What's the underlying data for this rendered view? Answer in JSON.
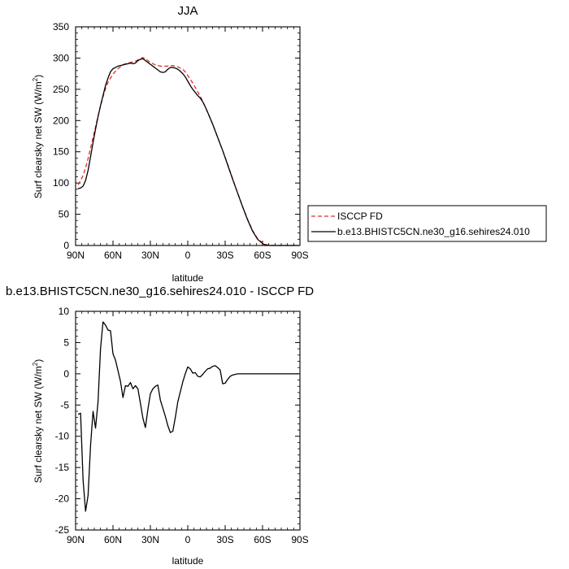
{
  "chart_data": [
    {
      "type": "line",
      "title": "JJA",
      "xlabel": "latitude",
      "ylabel": "Surf clearsky net SW (W/m",
      "ylabel_sup": "2",
      "ylabel_end": ")",
      "xlim": [
        90,
        -90
      ],
      "ylim": [
        0,
        350
      ],
      "xticks": [
        90,
        60,
        30,
        0,
        -30,
        -60,
        -90
      ],
      "xtick_labels": [
        "90N",
        "60N",
        "30N",
        "0",
        "30S",
        "60S",
        "90S"
      ],
      "yticks": [
        0,
        50,
        100,
        150,
        200,
        250,
        300,
        350
      ],
      "ytick_labels": [
        "0",
        "50",
        "100",
        "150",
        "200",
        "250",
        "300",
        "350"
      ],
      "legend": "right",
      "series": [
        {
          "name": "ISCCP FD",
          "color": "#e0302a",
          "dash": true,
          "x": [
            88,
            86,
            84,
            82,
            80,
            78,
            76,
            74,
            72,
            70,
            68,
            66,
            64,
            62,
            60,
            58,
            56,
            54,
            52,
            50,
            48,
            46,
            44,
            42,
            40,
            38,
            36,
            34,
            32,
            30,
            28,
            26,
            24,
            22,
            20,
            18,
            16,
            14,
            12,
            10,
            8,
            6,
            4,
            2,
            0,
            -2,
            -4,
            -6,
            -8,
            -10,
            -12,
            -14,
            -16,
            -20,
            -24,
            -28,
            -32,
            -36,
            -40,
            -44,
            -48,
            -52,
            -56,
            -60,
            -62,
            -64,
            -66,
            -70,
            -75,
            -80,
            -85,
            -89
          ],
          "y": [
            97,
            104,
            112,
            124,
            139,
            156,
            173,
            190,
            207,
            223,
            238,
            251,
            261,
            268,
            274,
            279,
            283,
            286,
            289,
            291,
            292,
            293,
            294,
            295,
            297,
            299,
            301,
            299,
            296,
            293,
            291,
            289,
            288,
            287,
            287,
            287,
            287,
            288,
            288,
            287,
            286,
            284,
            282,
            278,
            272,
            266,
            260,
            253,
            246,
            239,
            231,
            222,
            213,
            194,
            173,
            152,
            130,
            107,
            84,
            62,
            42,
            24,
            11,
            4,
            2,
            1,
            0.5,
            0,
            0,
            0,
            0,
            0
          ]
        },
        {
          "name": "b.e13.BHISTC5CN.ne30_g16.sehires24.010",
          "color": "#000000",
          "dash": false,
          "x": [
            88,
            86,
            84,
            82,
            80,
            78,
            76,
            74,
            72,
            70,
            68,
            66,
            64,
            62,
            60,
            58,
            56,
            54,
            52,
            50,
            48,
            46,
            44,
            42,
            40,
            38,
            36,
            34,
            32,
            30,
            28,
            26,
            24,
            22,
            20,
            18,
            16,
            14,
            12,
            10,
            8,
            6,
            4,
            2,
            0,
            -2,
            -4,
            -6,
            -8,
            -10,
            -12,
            -14,
            -16,
            -20,
            -24,
            -28,
            -32,
            -36,
            -40,
            -44,
            -48,
            -52,
            -56,
            -60,
            -62,
            -64,
            -66,
            -70,
            -75,
            -80,
            -85,
            -89
          ],
          "y": [
            91,
            92,
            95,
            104,
            120,
            142,
            165,
            186,
            206,
            224,
            240,
            256,
            268,
            278,
            283,
            285,
            287,
            288,
            289,
            290,
            291,
            292,
            291,
            292,
            296,
            298,
            299,
            296,
            293,
            290,
            287,
            284,
            281,
            278,
            277,
            278,
            282,
            285,
            285,
            284,
            282,
            279,
            275,
            270,
            263,
            256,
            250,
            245,
            240,
            236,
            230,
            222,
            213,
            194,
            173,
            152,
            129,
            106,
            84,
            62,
            41,
            23,
            10,
            3,
            1,
            0.5,
            0,
            0,
            0,
            0,
            0,
            0
          ]
        }
      ]
    },
    {
      "type": "line",
      "title": "b.e13.BHISTC5CN.ne30_g16.sehires24.010 - ISCCP FD",
      "xlabel": "latitude",
      "ylabel": "Surf clearsky net SW (W/m",
      "ylabel_sup": "2",
      "ylabel_end": ")",
      "xlim": [
        90,
        -90
      ],
      "ylim": [
        -25,
        10
      ],
      "xticks": [
        90,
        60,
        30,
        0,
        -30,
        -60,
        -90
      ],
      "xtick_labels": [
        "90N",
        "60N",
        "30N",
        "0",
        "30S",
        "60S",
        "90S"
      ],
      "yticks": [
        -25,
        -20,
        -15,
        -10,
        -5,
        0,
        5,
        10
      ],
      "ytick_labels": [
        "-25",
        "-20",
        "-15",
        "-10",
        "-5",
        "0",
        "5",
        "10"
      ],
      "series": [
        {
          "color": "#000000",
          "dash": false,
          "x": [
            88,
            86,
            84,
            82,
            80,
            78,
            76,
            74,
            72,
            70,
            68,
            66,
            64,
            62,
            60,
            58,
            56,
            54,
            52,
            50,
            48,
            46,
            44,
            42,
            40,
            38,
            36,
            34,
            32,
            30,
            28,
            26,
            24,
            22,
            20,
            18,
            16,
            14,
            12,
            10,
            8,
            6,
            4,
            2,
            0,
            -2,
            -4,
            -6,
            -8,
            -10,
            -12,
            -14,
            -16,
            -18,
            -20,
            -22,
            -24,
            -26,
            -28,
            -30,
            -32,
            -34,
            -36,
            -38,
            -40,
            -42,
            -44,
            -46,
            -48,
            -50,
            -52,
            -54,
            -56,
            -58,
            -60,
            -62,
            -64,
            -66,
            -68,
            -70,
            -72,
            -74,
            -76,
            -80,
            -84,
            -89
          ],
          "y": [
            -6.5,
            -6.3,
            -17,
            -22,
            -19.5,
            -11.5,
            -6,
            -8.7,
            -4.5,
            4,
            8.3,
            7.8,
            7,
            6.9,
            3.2,
            2.2,
            0.5,
            -1.2,
            -3.8,
            -1.9,
            -2,
            -1.4,
            -2.4,
            -1.9,
            -2.4,
            -4.7,
            -7.1,
            -8.6,
            -5.7,
            -3.2,
            -2.4,
            -2,
            -1.8,
            -4.2,
            -5.5,
            -6.8,
            -8.3,
            -9.4,
            -9.2,
            -7,
            -4.5,
            -2.9,
            -1.3,
            0,
            1.1,
            0.8,
            0.1,
            0.2,
            -0.4,
            -0.5,
            -0.1,
            0.4,
            0.8,
            0.9,
            1.2,
            1.3,
            1,
            0.6,
            -1.6,
            -1.5,
            -0.9,
            -0.4,
            -0.2,
            -0.1,
            0,
            0,
            0,
            0,
            0,
            0,
            0,
            0,
            0,
            0,
            0,
            0,
            0,
            0,
            0,
            0,
            0,
            0,
            0,
            0,
            0,
            0
          ]
        }
      ]
    }
  ]
}
